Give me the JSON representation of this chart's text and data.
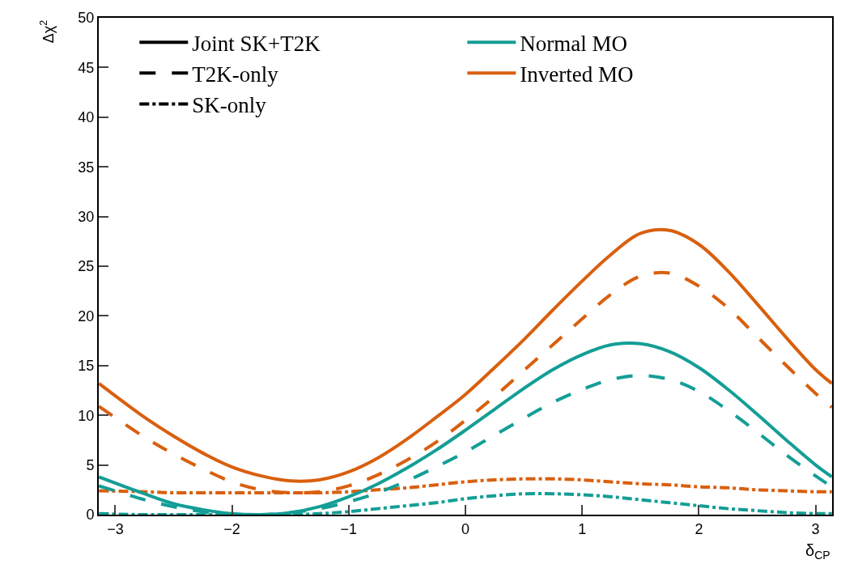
{
  "chart_data": {
    "type": "line",
    "xlabel": "δ$_{CP}$",
    "ylabel": "Δχ$^{2}$",
    "x": [
      -3.14,
      -2.75,
      -2.5,
      -2.25,
      -2,
      -1.75,
      -1.5,
      -1.25,
      -1,
      -0.75,
      -0.5,
      -0.25,
      0,
      0.25,
      0.5,
      0.75,
      1,
      1.25,
      1.5,
      1.75,
      2,
      2.25,
      2.5,
      2.75,
      3,
      3.14
    ],
    "xlim": [
      -3.1416,
      3.1416
    ],
    "xticks": [
      -3,
      -2,
      -1,
      0,
      1,
      2,
      3
    ],
    "ylim": [
      0,
      50
    ],
    "yticks": [
      0,
      5,
      10,
      15,
      20,
      25,
      30,
      35,
      40,
      45,
      50
    ],
    "legend": "top left",
    "marker": "none",
    "series": [
      {
        "color": "#d95f0e",
        "line_style": "solid",
        "values": [
          13.2,
          9.8,
          7.9,
          6.2,
          4.8,
          3.9,
          3.4,
          3.5,
          4.3,
          5.7,
          7.6,
          9.8,
          12.1,
          14.8,
          17.6,
          20.6,
          23.5,
          26.2,
          28.3,
          28.6,
          27.2,
          24.5,
          21.2,
          17.8,
          14.6,
          13.2
        ]
      },
      {
        "color": "#d95f0e",
        "line_style": "dashed",
        "values": [
          10.9,
          7.8,
          6.1,
          4.6,
          3.3,
          2.5,
          2.2,
          2.3,
          2.9,
          4.0,
          5.5,
          7.3,
          9.5,
          11.9,
          14.5,
          17.1,
          19.7,
          22.2,
          24.0,
          24.3,
          23.0,
          20.8,
          17.9,
          15.0,
          12.2,
          10.8
        ]
      },
      {
        "color": "#d95f0e",
        "line_style": "dashdot",
        "values": [
          2.4,
          2.3,
          2.2,
          2.2,
          2.2,
          2.2,
          2.2,
          2.2,
          2.3,
          2.5,
          2.7,
          3.0,
          3.3,
          3.5,
          3.6,
          3.6,
          3.5,
          3.3,
          3.1,
          3.0,
          2.8,
          2.7,
          2.5,
          2.4,
          2.3,
          2.3
        ]
      },
      {
        "color": "#139e96",
        "line_style": "solid",
        "values": [
          3.8,
          2.1,
          1.1,
          0.5,
          0.1,
          0.0,
          0.2,
          0.8,
          1.8,
          3.1,
          4.7,
          6.5,
          8.5,
          10.6,
          12.7,
          14.6,
          16.1,
          17.1,
          17.2,
          16.4,
          14.8,
          12.6,
          10.1,
          7.5,
          5.0,
          3.8
        ]
      },
      {
        "color": "#139e96",
        "line_style": "dashed",
        "values": [
          2.9,
          1.5,
          0.8,
          0.3,
          0.0,
          0.0,
          0.2,
          0.6,
          1.3,
          2.2,
          3.4,
          4.8,
          6.3,
          8.0,
          9.7,
          11.3,
          12.6,
          13.6,
          14.0,
          13.6,
          12.4,
          10.5,
          8.3,
          6.0,
          3.9,
          2.8
        ]
      },
      {
        "color": "#139e96",
        "line_style": "dashdot",
        "values": [
          0.1,
          0.0,
          0.0,
          0.0,
          0.0,
          0.0,
          0.0,
          0.1,
          0.3,
          0.6,
          0.9,
          1.2,
          1.6,
          1.9,
          2.1,
          2.1,
          2.0,
          1.8,
          1.5,
          1.2,
          0.9,
          0.6,
          0.4,
          0.2,
          0.1,
          0.1
        ]
      },
      {
        "name": "Joint SK+T2K",
        "color": "#000000",
        "line_style": "solid",
        "values": [
          null,
          null,
          null,
          null,
          null,
          null,
          null,
          null,
          null,
          null,
          null,
          null,
          null,
          null,
          null,
          null,
          null,
          null,
          null,
          null,
          null,
          null,
          null,
          null,
          null,
          null
        ]
      },
      {
        "name": "Normal MO",
        "color": "#139e96",
        "line_style": "solid",
        "values": [
          null,
          null,
          null,
          null,
          null,
          null,
          null,
          null,
          null,
          null,
          null,
          null,
          null,
          null,
          null,
          null,
          null,
          null,
          null,
          null,
          null,
          null,
          null,
          null,
          null,
          null
        ]
      },
      {
        "name": "T2K-only",
        "color": "#000000",
        "line_style": "dashed",
        "values": [
          null,
          null,
          null,
          null,
          null,
          null,
          null,
          null,
          null,
          null,
          null,
          null,
          null,
          null,
          null,
          null,
          null,
          null,
          null,
          null,
          null,
          null,
          null,
          null,
          null,
          null
        ]
      },
      {
        "name": "Inverted MO",
        "color": "#d95f0e",
        "line_style": "solid",
        "values": [
          null,
          null,
          null,
          null,
          null,
          null,
          null,
          null,
          null,
          null,
          null,
          null,
          null,
          null,
          null,
          null,
          null,
          null,
          null,
          null,
          null,
          null,
          null,
          null,
          null,
          null
        ]
      },
      {
        "name": "SK-only",
        "color": "#000000",
        "line_style": "dashdot",
        "values": [
          null,
          null,
          null,
          null,
          null,
          null,
          null,
          null,
          null,
          null,
          null,
          null,
          null,
          null,
          null,
          null,
          null,
          null,
          null,
          null,
          null,
          null,
          null,
          null,
          null,
          null
        ]
      }
    ]
  }
}
